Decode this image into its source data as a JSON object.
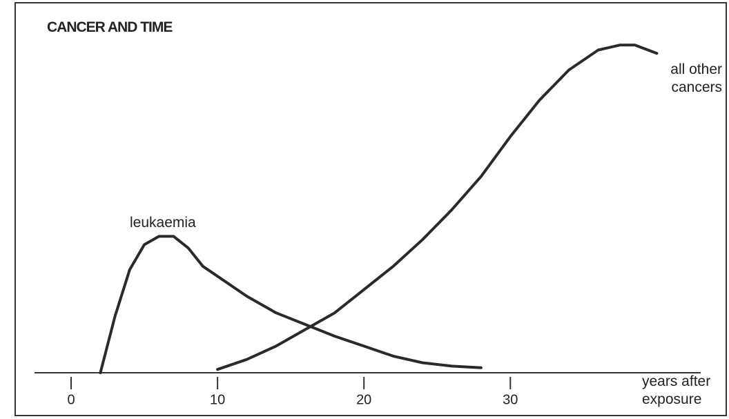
{
  "chart_data": {
    "type": "line",
    "title": "CANCER AND TIME",
    "x_label": "years after exposure",
    "xlim": [
      -2.5,
      43
    ],
    "xticks": [
      0,
      10,
      20,
      30
    ],
    "ylim": [
      0,
      100
    ],
    "series": [
      {
        "name": "leukaemia",
        "color": "#2a2a2a",
        "x": [
          2,
          3,
          4,
          5,
          6,
          7,
          8,
          9,
          10,
          12,
          14,
          16,
          18,
          20,
          22,
          24,
          26,
          28
        ],
        "values": [
          0,
          17,
          31,
          38.5,
          41,
          41,
          37.5,
          32,
          29,
          23,
          18,
          14.5,
          11,
          8,
          5,
          3,
          2,
          1.5
        ]
      },
      {
        "name": "all other cancers",
        "color": "#2a2a2a",
        "x": [
          10,
          12,
          14,
          16,
          18,
          20,
          22,
          24,
          26,
          28,
          30,
          32,
          34,
          36,
          37.5,
          38.5,
          40
        ],
        "values": [
          1,
          4,
          8,
          13,
          18,
          25,
          32,
          40,
          49,
          59,
          71,
          82,
          91,
          97,
          98.5,
          98.5,
          96
        ]
      }
    ]
  }
}
